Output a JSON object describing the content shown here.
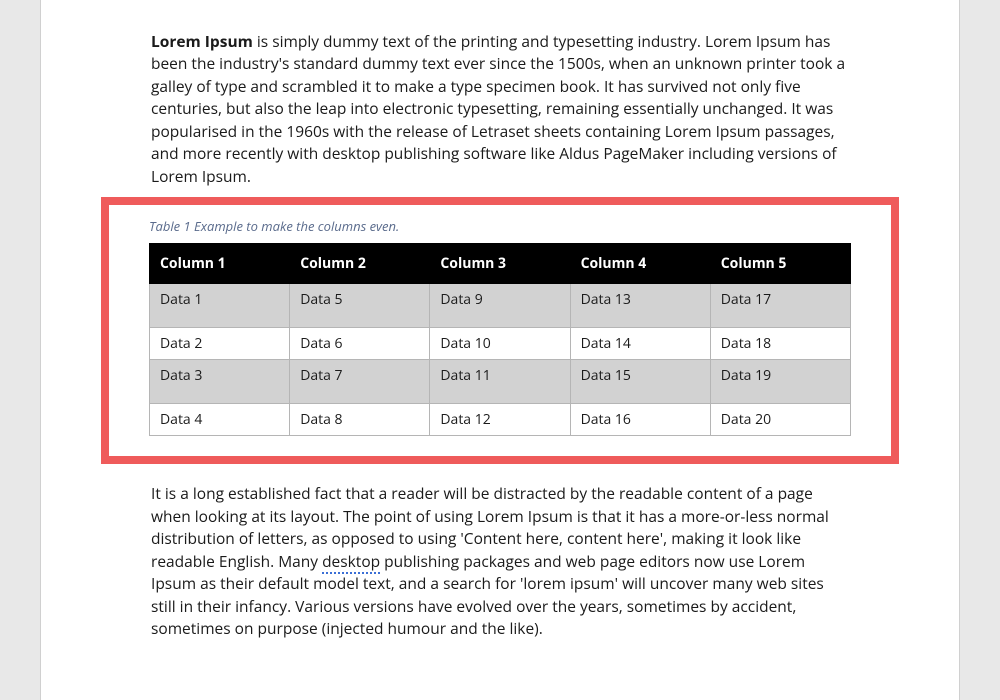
{
  "paragraph1": {
    "lead": "Lorem Ipsum",
    "rest": " is simply dummy text of the printing and typesetting industry. Lorem Ipsum has been the industry's standard dummy text ever since the 1500s, when an unknown printer took a galley of type and scrambled it to make a type specimen book. It has survived not only five centuries, but also the leap into electronic typesetting, remaining essentially unchanged. It was popularised in the 1960s with the release of Letraset sheets containing Lorem Ipsum passages, and more recently with desktop publishing software like Aldus PageMaker including versions of Lorem Ipsum."
  },
  "table": {
    "caption": "Table 1 Example to make the columns even.",
    "columns": [
      "Column 1",
      "Column 2",
      "Column 3",
      "Column 4",
      "Column 5"
    ],
    "rows": [
      {
        "cells": [
          "Data 1",
          "Data 5",
          "Data 9",
          "Data 13",
          "Data 17"
        ],
        "shaded": true,
        "tall": true
      },
      {
        "cells": [
          "Data 2",
          "Data 6",
          "Data 10",
          "Data 14",
          "Data 18"
        ],
        "shaded": false,
        "tall": false
      },
      {
        "cells": [
          "Data 3",
          "Data 7",
          "Data 11",
          "Data 15",
          "Data 19"
        ],
        "shaded": true,
        "tall": true
      },
      {
        "cells": [
          "Data 4",
          "Data 8",
          "Data 12",
          "Data 16",
          "Data 20"
        ],
        "shaded": false,
        "tall": false
      }
    ],
    "header_bg": "#000000",
    "header_fg": "#ffffff",
    "shade_bg": "#d2d2d2",
    "border_color": "#b5b5b5",
    "highlight_border": "#ef5b5b"
  },
  "paragraph2": {
    "part1": "It is a long established fact that a reader will be distracted by the readable content of a page when looking at its layout. The point of using Lorem Ipsum is that it has a more-or-less normal distribution of letters, as opposed to using 'Content here, content here', making it look like readable English. Many ",
    "spell_word": "desktop",
    "part2": " publishing packages and web page editors now use Lorem Ipsum as their default model text, and a search for 'lorem ipsum' will uncover many web sites still in their infancy. Various versions have evolved over the years, sometimes by accident, sometimes on purpose (injected humour and the like)."
  }
}
